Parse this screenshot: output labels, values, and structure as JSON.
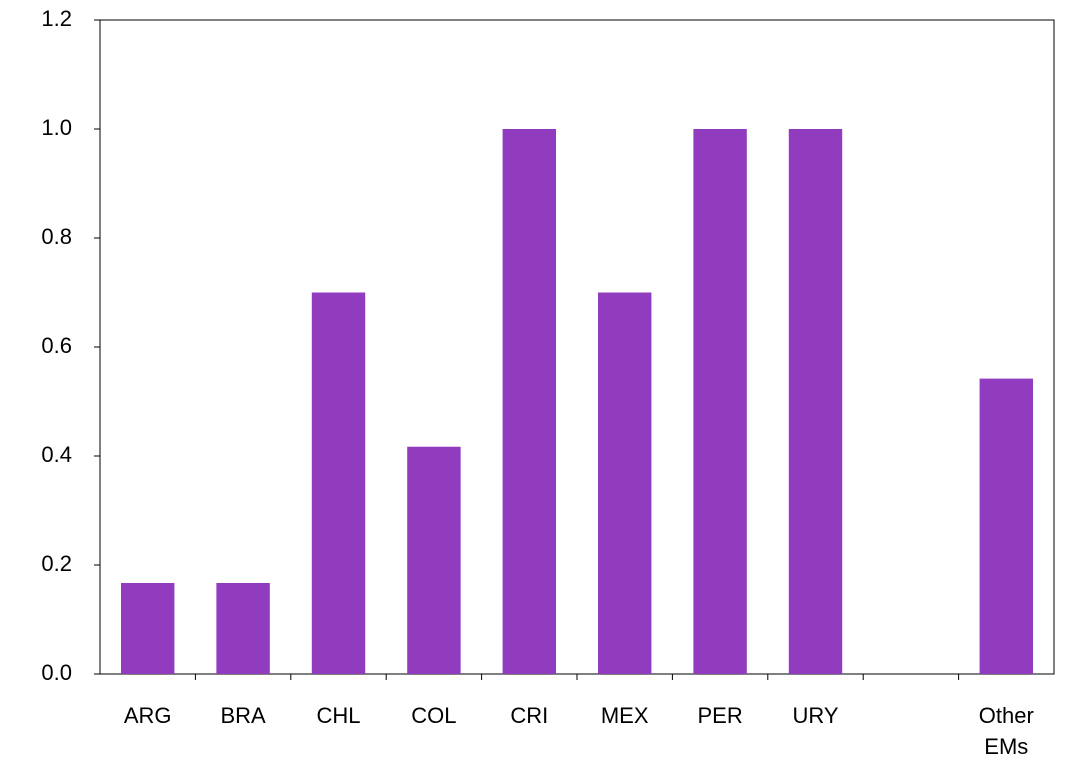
{
  "chart_data": {
    "type": "bar",
    "categories": [
      "ARG",
      "BRA",
      "CHL",
      "COL",
      "CRI",
      "MEX",
      "PER",
      "URY",
      null,
      "Other EMs"
    ],
    "values": [
      0.167,
      0.167,
      0.7,
      0.417,
      1.0,
      0.7,
      1.0,
      1.0,
      null,
      0.542
    ],
    "color": "#913bbf",
    "ylim": [
      0,
      1.2
    ],
    "yticks": [
      {
        "value": 0,
        "label": "0.0"
      },
      0.2,
      0.4,
      0.6,
      0.8,
      {
        "value": 1,
        "label": "1.0"
      },
      1.2
    ],
    "grid": false
  }
}
